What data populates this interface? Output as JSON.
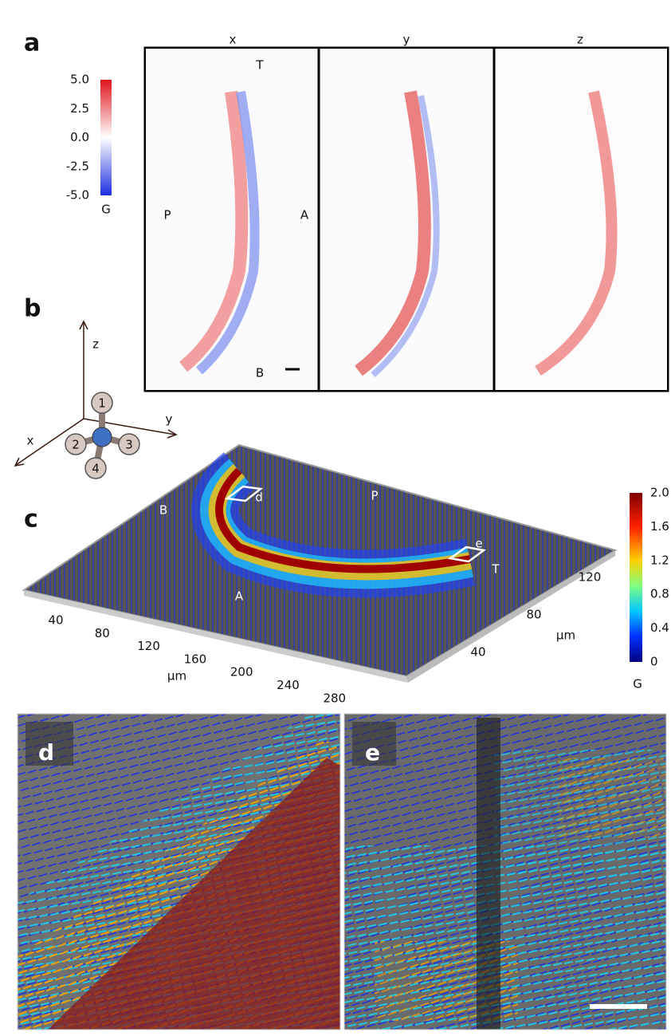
{
  "panel_a": {
    "label": "a",
    "colorbar": {
      "ticks": [
        "5.0",
        "2.5",
        "0.0",
        "-2.5",
        "-5.0"
      ],
      "unit": "G"
    },
    "maps": [
      {
        "title": "x"
      },
      {
        "title": "y"
      },
      {
        "title": "z"
      }
    ],
    "annotations": {
      "top": "T",
      "posterior": "P",
      "anterior": "A",
      "bottom": "B"
    }
  },
  "panel_b": {
    "label": "b",
    "axes": {
      "z": "z",
      "x": "x",
      "y": "y"
    },
    "legs": [
      "1",
      "2",
      "3",
      "4"
    ]
  },
  "panel_c": {
    "label": "c",
    "annotations": [
      "B",
      "A",
      "d",
      "P",
      "e",
      "T"
    ],
    "x_ticks": [
      "40",
      "80",
      "120",
      "160",
      "200",
      "240",
      "280"
    ],
    "x_unit": "µm",
    "y_ticks": [
      "40",
      "80",
      "120"
    ],
    "y_unit": "µm",
    "colorbar": {
      "ticks": [
        "2.0",
        "1.6",
        "1.2",
        "0.8",
        "0.4",
        "0"
      ],
      "unit": "G"
    }
  },
  "panel_d": {
    "label": "d"
  },
  "panel_e": {
    "label": "e"
  }
}
